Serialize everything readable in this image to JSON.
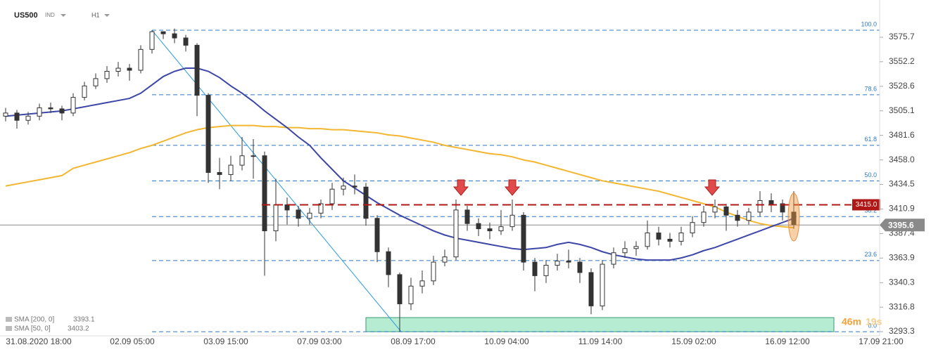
{
  "header": {
    "symbol": "US500",
    "market": "IND",
    "timeframe": "H1"
  },
  "chart_data": {
    "type": "candlestick",
    "x_labels": [
      "31.08.2020 18:00",
      "02.09 05:00",
      "03.09 15:00",
      "07.09 03:00",
      "08.09 17:00",
      "10.09 04:00",
      "11.09 14:00",
      "15.09 02:00",
      "16.09 12:00",
      "17.09 21:00"
    ],
    "open": [
      3500,
      3503,
      3496,
      3500,
      3508,
      3507,
      3503,
      3518,
      3529,
      3536,
      3543,
      3546,
      3544,
      3564,
      3581,
      3579,
      3575,
      3568,
      3520,
      3446,
      3444,
      3453,
      3462,
      3462,
      3390,
      3415,
      3410,
      3402,
      3407,
      3416,
      3430,
      3433,
      3432,
      3402,
      3370,
      3348,
      3320,
      3337,
      3342,
      3360,
      3365,
      3410,
      3397,
      3392,
      3390,
      3394,
      3405,
      3360,
      3347,
      3357,
      3361,
      3360,
      3350,
      3318,
      3358,
      3369,
      3373,
      3375,
      3388,
      3382,
      3380,
      3388,
      3398,
      3408,
      3413,
      3405,
      3400,
      3408,
      3419,
      3416,
      3408
    ],
    "high": [
      3508,
      3506,
      3504,
      3512,
      3513,
      3510,
      3522,
      3533,
      3541,
      3548,
      3552,
      3550,
      3568,
      3582.4,
      3580,
      3584,
      3578,
      3570,
      3522,
      3460,
      3462,
      3480,
      3478,
      3466,
      3440,
      3422,
      3414,
      3412,
      3420,
      3436,
      3441,
      3444,
      3436,
      3405,
      3374,
      3350,
      3345,
      3352,
      3366,
      3372,
      3420,
      3414,
      3402,
      3398,
      3410,
      3420,
      3408,
      3364,
      3362,
      3368,
      3372,
      3364,
      3354,
      3362,
      3374,
      3380,
      3380,
      3400,
      3394,
      3388,
      3394,
      3404,
      3414,
      3420,
      3416,
      3410,
      3412,
      3428,
      3426,
      3420,
      3428
    ],
    "low": [
      3495,
      3488,
      3492,
      3496,
      3503,
      3496,
      3500,
      3515,
      3526,
      3532,
      3538,
      3534,
      3541,
      3560,
      3574,
      3570,
      3562,
      3500,
      3436,
      3430,
      3438,
      3448,
      3440,
      3347,
      3380,
      3396,
      3394,
      3396,
      3402,
      3410,
      3424,
      3425,
      3395,
      3360,
      3336,
      3293.3,
      3314,
      3330,
      3338,
      3356,
      3362,
      3390,
      3385,
      3382,
      3386,
      3390,
      3352,
      3332,
      3340,
      3352,
      3354,
      3340,
      3310,
      3314,
      3354,
      3364,
      3366,
      3372,
      3376,
      3374,
      3376,
      3384,
      3394,
      3402,
      3390,
      3394,
      3396,
      3404,
      3408,
      3400,
      3392
    ],
    "close": [
      3503,
      3496,
      3500,
      3508,
      3507,
      3503,
      3518,
      3529,
      3536,
      3543,
      3546,
      3544,
      3564,
      3581,
      3579,
      3575,
      3568,
      3520,
      3446,
      3444,
      3453,
      3462,
      3462,
      3390,
      3415,
      3410,
      3402,
      3407,
      3416,
      3430,
      3433,
      3432,
      3402,
      3370,
      3348,
      3320,
      3337,
      3342,
      3360,
      3365,
      3410,
      3397,
      3392,
      3390,
      3394,
      3405,
      3360,
      3347,
      3357,
      3361,
      3360,
      3350,
      3318,
      3358,
      3369,
      3373,
      3375,
      3388,
      3382,
      3380,
      3388,
      3398,
      3408,
      3413,
      3405,
      3400,
      3408,
      3419,
      3416,
      3408,
      3396
    ],
    "ylim": [
      3289.3,
      3611.4
    ],
    "yticks": [
      3575.7,
      3552.2,
      3528.6,
      3505.1,
      3481.6,
      {
        "value": 3458,
        "label": "3458.0"
      },
      3434.5,
      3410.9,
      3387.4,
      3363.9,
      3340.3,
      3316.8,
      3293.3
    ],
    "indicators": [
      {
        "name": "SMA [200, 0]",
        "value": 3393.1,
        "color": "#f2b630",
        "values": [
          3433,
          3435,
          3437,
          3439,
          3441,
          3443,
          3450,
          3453,
          3456,
          3459,
          3462,
          3465,
          3469,
          3472,
          3476,
          3480,
          3484,
          3487,
          3489,
          3490,
          3491,
          3491,
          3491,
          3490,
          3490,
          3489,
          3489,
          3488,
          3488,
          3487,
          3487,
          3486,
          3485,
          3484,
          3482,
          3481,
          3479,
          3477,
          3475,
          3472,
          3470,
          3468,
          3466,
          3464,
          3463,
          3461,
          3458,
          3456,
          3453,
          3450,
          3447,
          3444,
          3441,
          3438,
          3436,
          3434,
          3432,
          3430,
          3428,
          3425,
          3422,
          3419,
          3416,
          3413,
          3408,
          3404,
          3400,
          3397,
          3395,
          3394,
          3393
        ]
      },
      {
        "name": "SMA [50, 0]",
        "value": 3403.2,
        "color": "#3c46a6",
        "values": [
          3500,
          3501,
          3502,
          3503,
          3504,
          3505,
          3507,
          3509,
          3511,
          3513,
          3515,
          3517,
          3522,
          3530,
          3538,
          3543,
          3546,
          3546,
          3543,
          3537,
          3529,
          3522,
          3514,
          3505,
          3497,
          3489,
          3480,
          3472,
          3460,
          3449,
          3438,
          3431,
          3424,
          3417,
          3411,
          3405,
          3400,
          3395,
          3390,
          3386,
          3383,
          3381,
          3379,
          3377,
          3375,
          3373,
          3372,
          3373,
          3374,
          3377,
          3379,
          3377,
          3374,
          3370,
          3367,
          3365,
          3363,
          3362,
          3362,
          3362,
          3364,
          3367,
          3371,
          3374,
          3378,
          3382,
          3386,
          3390,
          3394,
          3398,
          3402
        ]
      }
    ],
    "fibonacci": {
      "color": "#2d78c4",
      "levels": [
        {
          "label": "100.0",
          "value": 3582.4
        },
        {
          "label": "78.6",
          "value": 3520.5
        },
        {
          "label": "61.8",
          "value": 3472.0
        },
        {
          "label": "50.0",
          "value": 3437.9
        },
        {
          "label": "38.2",
          "value": 3403.7
        },
        {
          "label": "23.6",
          "value": 3361.5
        },
        {
          "label": "0.0",
          "value": 3293.3
        }
      ]
    },
    "resistance": {
      "value": 3415,
      "label": "3415.0",
      "color": "#b01818"
    },
    "current_price": 3395.6,
    "support_zone": [
      3293.3,
      3306.8
    ],
    "countdown": {
      "minutes": "46m",
      "seconds": "19s"
    }
  }
}
